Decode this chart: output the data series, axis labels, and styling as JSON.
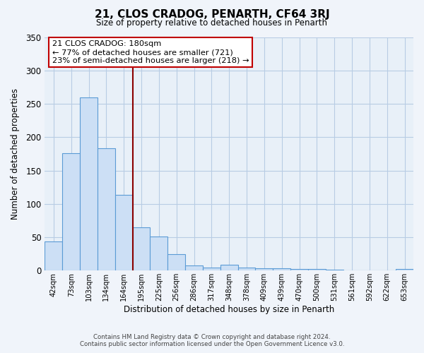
{
  "title": "21, CLOS CRADOG, PENARTH, CF64 3RJ",
  "subtitle": "Size of property relative to detached houses in Penarth",
  "xlabel": "Distribution of detached houses by size in Penarth",
  "ylabel": "Number of detached properties",
  "bin_labels": [
    "42sqm",
    "73sqm",
    "103sqm",
    "134sqm",
    "164sqm",
    "195sqm",
    "225sqm",
    "256sqm",
    "286sqm",
    "317sqm",
    "348sqm",
    "378sqm",
    "409sqm",
    "439sqm",
    "470sqm",
    "500sqm",
    "531sqm",
    "561sqm",
    "592sqm",
    "622sqm",
    "653sqm"
  ],
  "bar_values": [
    44,
    176,
    260,
    183,
    113,
    65,
    51,
    25,
    8,
    5,
    9,
    5,
    4,
    4,
    2,
    2,
    1,
    0,
    0,
    0,
    2
  ],
  "bar_color": "#ccdff5",
  "bar_edge_color": "#5b9bd5",
  "vline_index": 4.5,
  "vline_color": "#8b0000",
  "annotation_title": "21 CLOS CRADOG: 180sqm",
  "annotation_line1": "← 77% of detached houses are smaller (721)",
  "annotation_line2": "23% of semi-detached houses are larger (218) →",
  "annotation_box_color": "#ffffff",
  "annotation_box_edge": "#c00000",
  "ylim": [
    0,
    350
  ],
  "yticks": [
    0,
    50,
    100,
    150,
    200,
    250,
    300,
    350
  ],
  "footer_line1": "Contains HM Land Registry data © Crown copyright and database right 2024.",
  "footer_line2": "Contains public sector information licensed under the Open Government Licence v3.0.",
  "bg_color": "#f0f4fa",
  "plot_bg_color": "#e8f0f8",
  "grid_color": "#b8cce4"
}
